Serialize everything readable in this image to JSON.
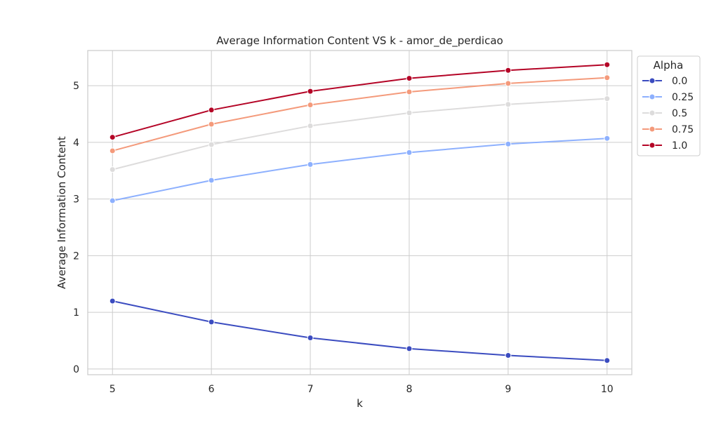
{
  "chart_data": {
    "type": "line",
    "title": "Average Information Content VS k - amor_de_perdicao",
    "xlabel": "k",
    "ylabel": "Average Information Content",
    "x": [
      5,
      6,
      7,
      8,
      9,
      10
    ],
    "xlim": [
      4.75,
      10.25
    ],
    "ylim": [
      -0.1,
      5.62
    ],
    "xticks": [
      5,
      6,
      7,
      8,
      9,
      10
    ],
    "yticks": [
      0,
      1,
      2,
      3,
      4,
      5
    ],
    "grid": true,
    "legend": {
      "title": "Alpha",
      "placement": "top-right, outside plot"
    },
    "series": [
      {
        "name": "0.0",
        "color": "#3b4cc0",
        "values": [
          1.2,
          0.83,
          0.55,
          0.36,
          0.24,
          0.15
        ]
      },
      {
        "name": "0.25",
        "color": "#8db0fe",
        "values": [
          2.97,
          3.33,
          3.61,
          3.82,
          3.97,
          4.07
        ]
      },
      {
        "name": "0.5",
        "color": "#dddcdc",
        "values": [
          3.52,
          3.96,
          4.29,
          4.52,
          4.67,
          4.77
        ]
      },
      {
        "name": "0.75",
        "color": "#f49a7b",
        "values": [
          3.85,
          4.32,
          4.66,
          4.89,
          5.04,
          5.14
        ]
      },
      {
        "name": "1.0",
        "color": "#b40426",
        "values": [
          4.09,
          4.57,
          4.9,
          5.13,
          5.27,
          5.37
        ]
      }
    ]
  }
}
